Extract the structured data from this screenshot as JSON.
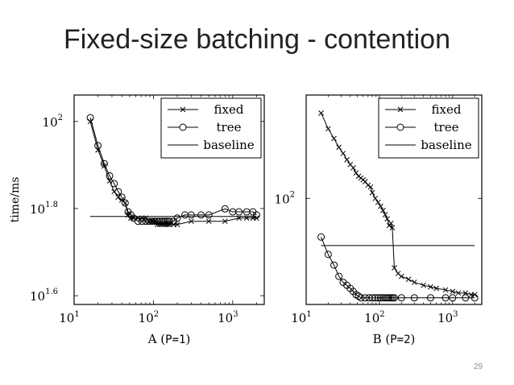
{
  "slide": {
    "title": "Fixed-size batching - contention",
    "page_number": "29"
  },
  "colors": {
    "text": "#222222",
    "line": "#000000",
    "page_number": "#8c8c8c"
  },
  "chart_data": [
    {
      "type": "line",
      "panel_label": "A",
      "panel_param": "P=1",
      "ylabel": "time/ms",
      "xscale": "log",
      "yscale": "log",
      "xlim": [
        10,
        2500
      ],
      "ylim": [
        38,
        115
      ],
      "xticks": [
        {
          "value": 10,
          "base": "10",
          "exp": "1"
        },
        {
          "value": 100,
          "base": "10",
          "exp": "2"
        },
        {
          "value": 1000,
          "base": "10",
          "exp": "3"
        }
      ],
      "yticks": [
        {
          "value": 39.8,
          "base": "10",
          "exp": "1.6"
        },
        {
          "value": 63.1,
          "base": "10",
          "exp": "1.8"
        },
        {
          "value": 100,
          "base": "10",
          "exp": "2"
        }
      ],
      "legend": {
        "position": "top-right",
        "entries": [
          "fixed",
          "tree",
          "baseline"
        ]
      },
      "series": [
        {
          "name": "fixed",
          "marker": "x",
          "x": [
            16,
            20,
            24,
            28,
            32,
            36,
            40,
            44,
            48,
            52,
            56,
            64,
            72,
            80,
            88,
            96,
            104,
            112,
            120,
            128,
            136,
            144,
            152,
            160,
            180,
            200,
            300,
            500,
            800,
            1200,
            1500,
            1800,
            2000
          ],
          "y": [
            100,
            86,
            79,
            73,
            69,
            67,
            66,
            65,
            61,
            60,
            60,
            60,
            60,
            60,
            59,
            59,
            59,
            58,
            58,
            58,
            58,
            58,
            58,
            58,
            58,
            58,
            59,
            59,
            59,
            60,
            60,
            60,
            60
          ]
        },
        {
          "name": "tree",
          "marker": "o",
          "x": [
            16,
            20,
            24,
            28,
            32,
            36,
            40,
            44,
            48,
            52,
            56,
            64,
            72,
            80,
            88,
            96,
            104,
            112,
            120,
            128,
            136,
            144,
            152,
            160,
            180,
            200,
            250,
            300,
            400,
            500,
            800,
            1000,
            1200,
            1500,
            1800,
            2000
          ],
          "y": [
            102,
            88,
            80,
            75,
            72,
            69,
            67,
            65,
            62,
            61,
            60,
            59,
            59,
            59,
            59,
            59,
            59,
            59,
            59,
            59,
            59,
            59,
            59,
            59,
            59,
            60,
            61,
            61,
            61,
            61,
            63,
            62,
            62,
            62,
            62,
            61
          ]
        },
        {
          "name": "baseline",
          "marker": "none",
          "x": [
            16,
            2000
          ],
          "y": [
            60.5,
            60.5
          ]
        }
      ]
    },
    {
      "type": "line",
      "panel_label": "B",
      "panel_param": "P=2",
      "ylabel": "",
      "xscale": "log",
      "yscale": "log",
      "xlim": [
        10,
        2500
      ],
      "ylim": [
        58,
        170
      ],
      "xticks": [
        {
          "value": 10,
          "base": "10",
          "exp": "1"
        },
        {
          "value": 100,
          "base": "10",
          "exp": "2"
        },
        {
          "value": 1000,
          "base": "10",
          "exp": "3"
        }
      ],
      "yticks": [
        {
          "value": 100,
          "base": "10",
          "exp": "2"
        }
      ],
      "legend": {
        "position": "top-right",
        "entries": [
          "fixed",
          "tree",
          "baseline"
        ]
      },
      "series": [
        {
          "name": "fixed",
          "marker": "x",
          "x": [
            16,
            20,
            24,
            28,
            32,
            36,
            40,
            44,
            48,
            52,
            56,
            60,
            64,
            70,
            76,
            80,
            88,
            96,
            104,
            112,
            120,
            128,
            136,
            144,
            150,
            160,
            180,
            200,
            250,
            300,
            400,
            500,
            600,
            800,
            1000,
            1200,
            1500,
            1800,
            2000
          ],
          "y": [
            155,
            143,
            136,
            130,
            126,
            122,
            119,
            117,
            114,
            112,
            111,
            110,
            109,
            107,
            106,
            103,
            100,
            98,
            96,
            94,
            92,
            90,
            87,
            88,
            86,
            70,
            68,
            67,
            66,
            65,
            64,
            63.5,
            63,
            62.5,
            62,
            61.5,
            61.5,
            61,
            61
          ]
        },
        {
          "name": "tree",
          "marker": "o",
          "x": [
            16,
            20,
            24,
            28,
            32,
            36,
            40,
            44,
            48,
            52,
            56,
            64,
            72,
            80,
            88,
            96,
            104,
            112,
            120,
            128,
            136,
            144,
            152,
            160,
            200,
            300,
            500,
            800,
            1000,
            1500,
            2000
          ],
          "y": [
            82,
            75,
            71,
            67,
            65,
            64,
            63,
            62,
            61,
            60.5,
            60,
            60,
            60,
            60,
            60,
            60,
            60,
            60,
            60,
            60,
            60,
            60,
            60,
            60,
            60,
            60,
            60,
            60,
            60,
            60,
            60
          ]
        },
        {
          "name": "baseline",
          "marker": "none",
          "x": [
            16,
            2000
          ],
          "y": [
            78.5,
            78.5
          ]
        }
      ]
    }
  ]
}
